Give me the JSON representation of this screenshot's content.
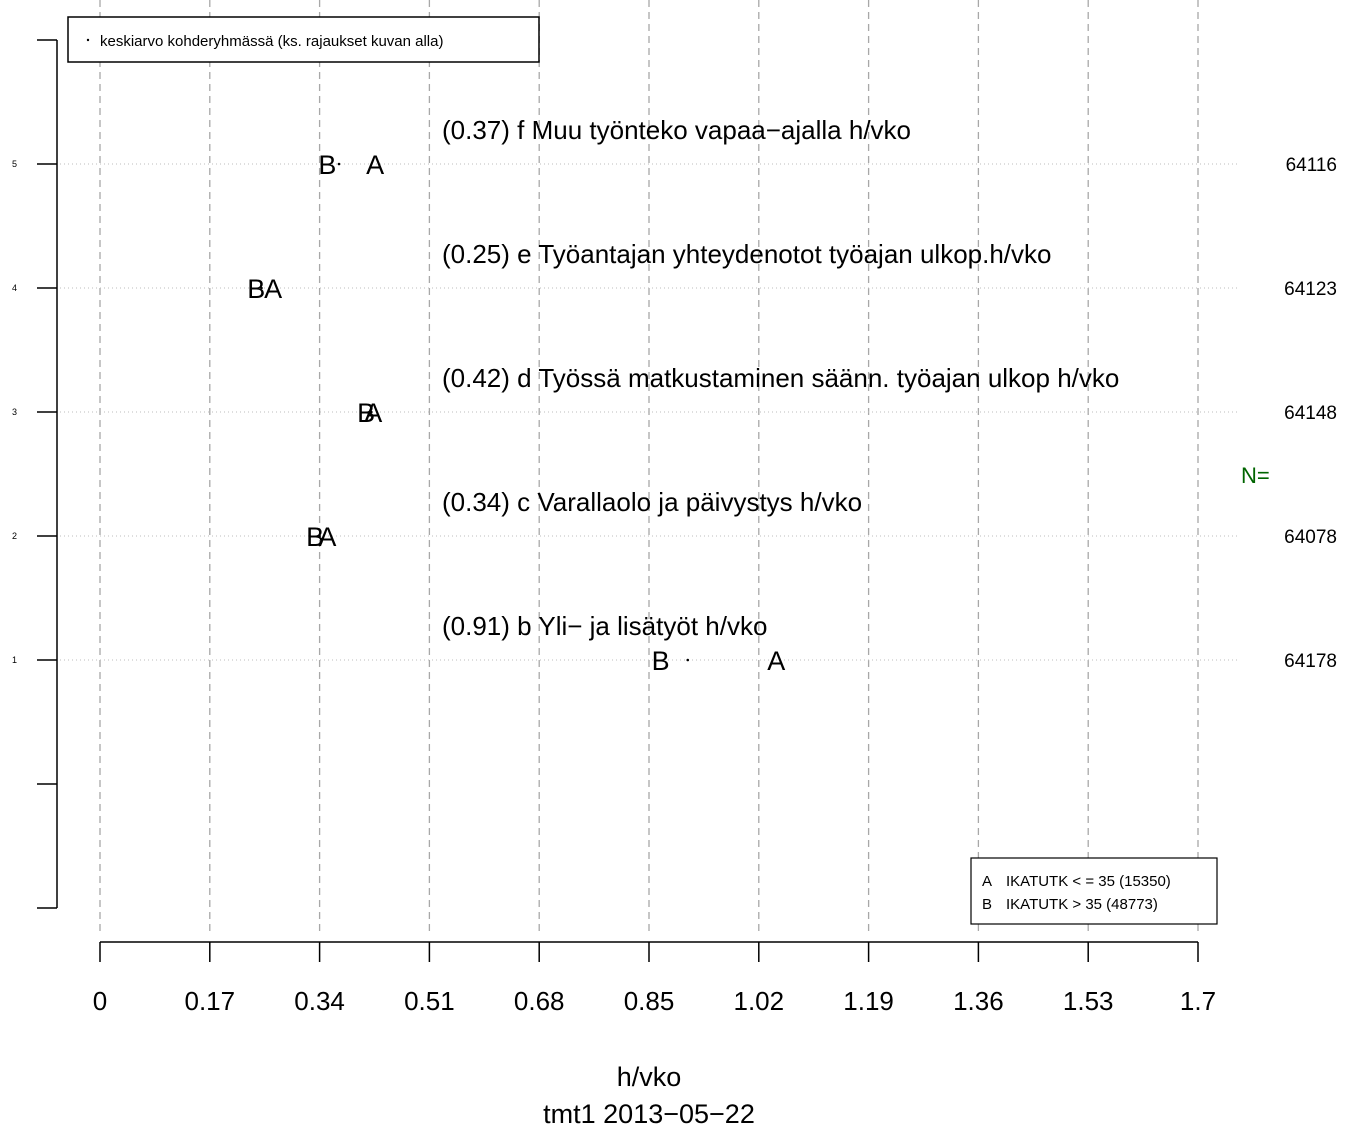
{
  "chart_data": {
    "type": "scatter",
    "title": "",
    "xlabel": "h/vko",
    "subtitle": "tmt1 2013−05−22",
    "xlim": [
      0,
      1.7
    ],
    "xticks": [
      "0",
      "0.17",
      "0.34",
      "0.51",
      "0.68",
      "0.85",
      "1.02",
      "1.19",
      "1.36",
      "1.53",
      "1.7"
    ],
    "ylim": [
      -1,
      6
    ],
    "yticks": [
      "1",
      "2",
      "3",
      "4",
      "5"
    ],
    "grid": true,
    "top_legend": "keskiarvo kohderyhmässä (ks. rajaukset kuvan alla)",
    "group_legend": [
      {
        "letter": "A",
        "text": "IKATUTK < = 35 (15350)"
      },
      {
        "letter": "B",
        "text": "IKATUTK > 35 (48773)"
      }
    ],
    "n_label": "N=",
    "n_label_color": "#006400",
    "rows": [
      {
        "y": 5,
        "label": "(0.37) f Muu työnteko vapaa−ajalla h/vko",
        "mean": 0.37,
        "A": 0.426,
        "B": 0.352,
        "N": "64116"
      },
      {
        "y": 4,
        "label": "(0.25) e Työantajan yhteydenotot työajan ulkop.h/vko",
        "mean": 0.25,
        "A": 0.268,
        "B": 0.242,
        "N": "64123"
      },
      {
        "y": 3,
        "label": "(0.42) d Työssä matkustaminen säänn. työajan ulkop h/vko",
        "mean": 0.42,
        "A": 0.423,
        "B": 0.412,
        "N": "64148"
      },
      {
        "y": 2,
        "label": "(0.34) c Varallaolo ja päivystys h/vko",
        "mean": 0.34,
        "A": 0.352,
        "B": 0.333,
        "N": "64078"
      },
      {
        "y": 1,
        "label": "(0.91) b Yli− ja lisätyöt h/vko",
        "mean": 0.91,
        "A": 1.047,
        "B": 0.868,
        "N": "64178"
      }
    ]
  }
}
